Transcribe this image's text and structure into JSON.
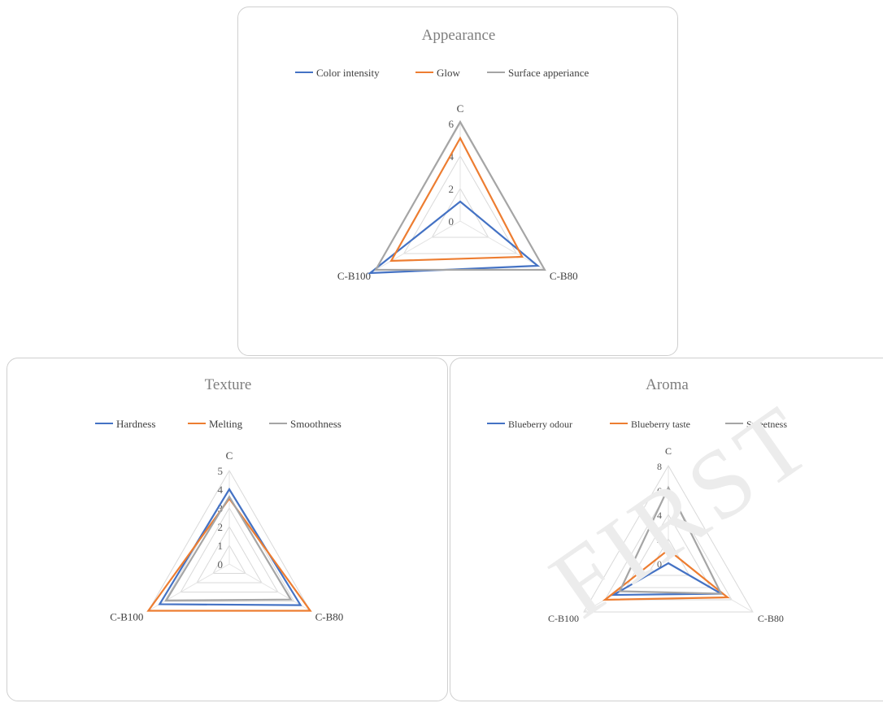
{
  "chart_data": [
    {
      "type": "radar",
      "title": "Appearance",
      "axes": [
        "C",
        "C-B80",
        "C-B100"
      ],
      "rmin": 0,
      "rmax": 6,
      "ticks": [
        0,
        2,
        4,
        6
      ],
      "legend_position": "top",
      "grid": true,
      "series": [
        {
          "name": "Color intensity",
          "color": "#4472c4",
          "values": [
            1.2,
            5.5,
            6.4
          ]
        },
        {
          "name": "Glow",
          "color": "#ed7d31",
          "values": [
            5.1,
            4.4,
            4.9
          ]
        },
        {
          "name": "Surface apperiance",
          "color": "#a5a5a5",
          "values": [
            6.1,
            6.0,
            6.0
          ]
        }
      ]
    },
    {
      "type": "radar",
      "title": "Texture",
      "axes": [
        "C",
        "C-B80",
        "C-B100"
      ],
      "rmin": 0,
      "rmax": 5,
      "ticks": [
        0,
        1,
        2,
        3,
        4,
        5
      ],
      "legend_position": "top",
      "grid": true,
      "series": [
        {
          "name": "Hardness",
          "color": "#4472c4",
          "values": [
            4.0,
            4.4,
            4.3
          ]
        },
        {
          "name": "Melting",
          "color": "#ed7d31",
          "values": [
            3.5,
            5.0,
            5.0
          ]
        },
        {
          "name": "Smoothness",
          "color": "#a5a5a5",
          "values": [
            3.6,
            3.8,
            3.9
          ]
        }
      ]
    },
    {
      "type": "radar",
      "title": "Aroma",
      "axes": [
        "C",
        "C-B80",
        "C-B100"
      ],
      "rmin": 0,
      "rmax": 8,
      "ticks": [
        0,
        2,
        4,
        6,
        8
      ],
      "legend_position": "top",
      "grid": true,
      "series": [
        {
          "name": "Blueberry odour",
          "color": "#4472c4",
          "values": [
            0.0,
            5.0,
            5.2
          ]
        },
        {
          "name": "Blueberry taste",
          "color": "#ed7d31",
          "values": [
            1.1,
            5.6,
            6.0
          ]
        },
        {
          "name": "Sweetness",
          "color": "#a5a5a5",
          "values": [
            6.2,
            5.0,
            4.6
          ]
        }
      ]
    }
  ],
  "watermark": "FIRST"
}
